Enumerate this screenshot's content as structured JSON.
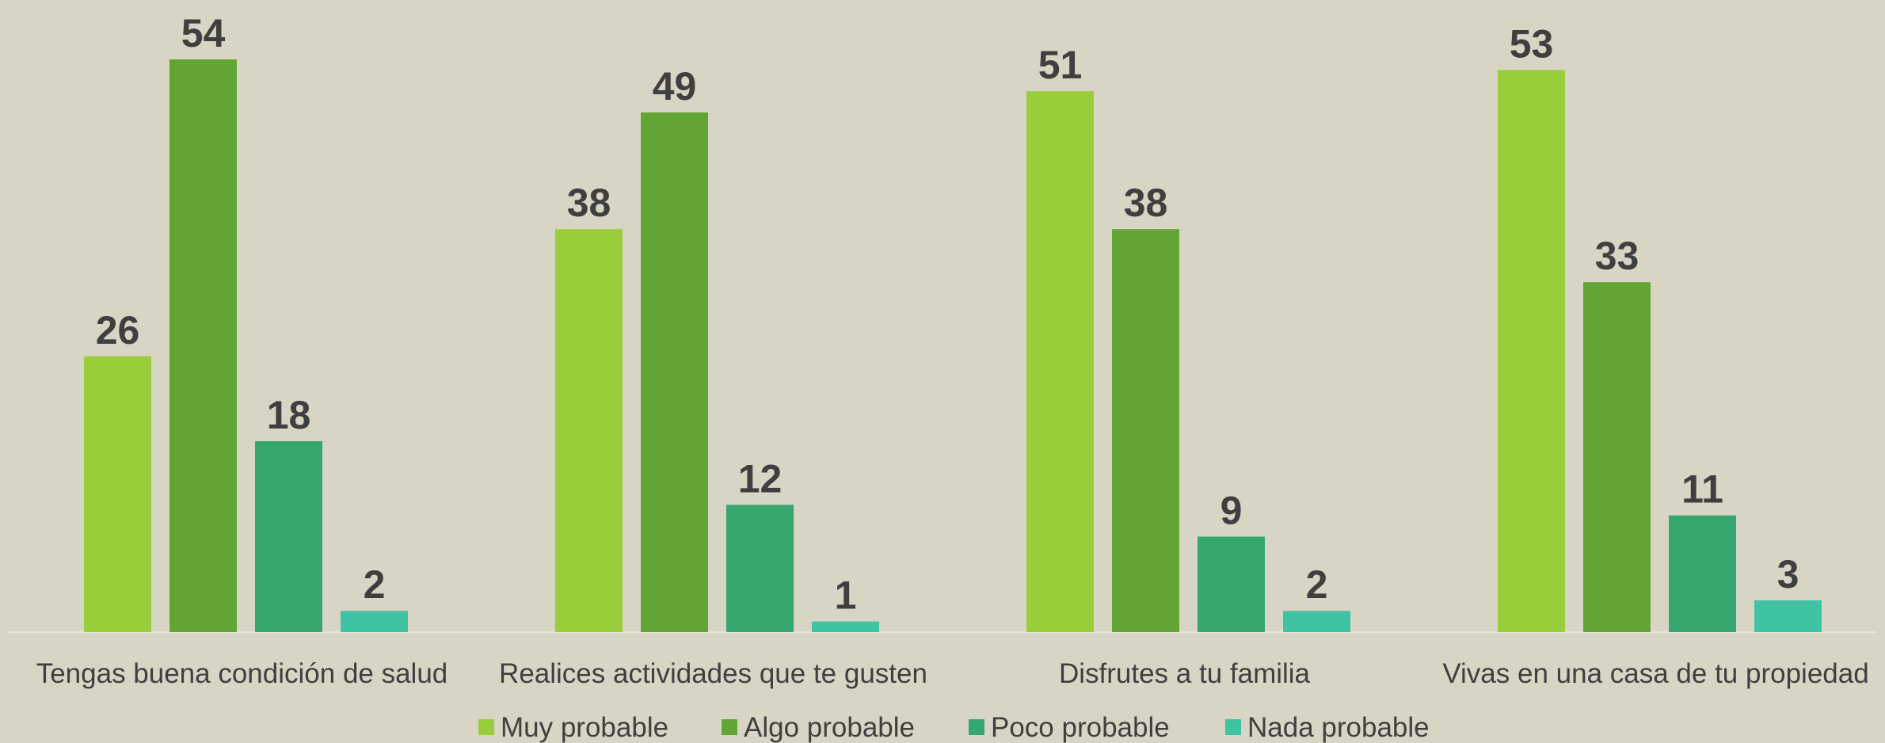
{
  "chart_data": {
    "type": "bar",
    "categories": [
      "Tengas buena condición de salud",
      "Realices actividades que te gusten",
      "Disfrutes a tu familia",
      "Vivas en una casa de tu propiedad"
    ],
    "series": [
      {
        "name": "Muy probable",
        "color": "#9acd3a",
        "values": [
          26,
          38,
          51,
          53
        ]
      },
      {
        "name": "Algo probable",
        "color": "#62a535",
        "values": [
          54,
          49,
          38,
          33
        ]
      },
      {
        "name": "Poco probable",
        "color": "#36a76c",
        "values": [
          18,
          12,
          9,
          11
        ]
      },
      {
        "name": "Nada probable",
        "color": "#40c3a2",
        "values": [
          2,
          1,
          2,
          3
        ]
      }
    ],
    "legend": "bottom",
    "data_labels": true
  }
}
